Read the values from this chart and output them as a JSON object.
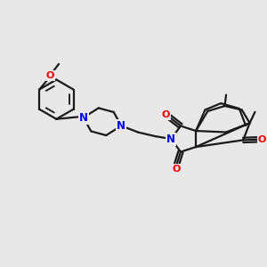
{
  "background_color": "#e8e8e8",
  "bond_color": "#1a1a1a",
  "nitrogen_color": "#0000ee",
  "oxygen_color": "#ee0000",
  "bond_width": 1.6,
  "figsize": [
    3.0,
    3.0
  ],
  "dpi": 100,
  "xlim": [
    0,
    10
  ],
  "ylim": [
    0,
    10
  ]
}
